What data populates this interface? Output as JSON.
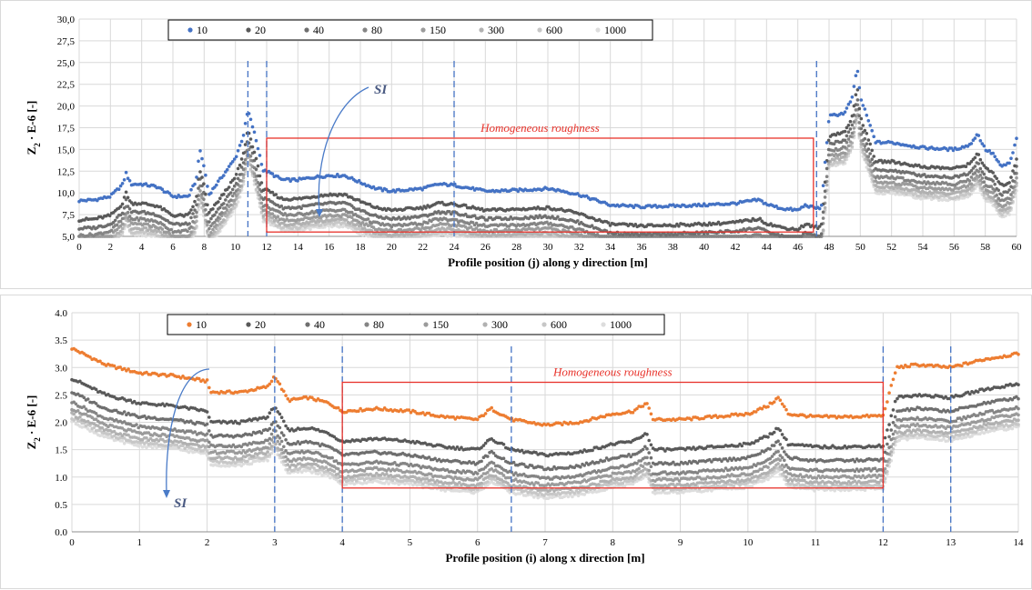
{
  "chart_data": [
    {
      "type": "scatter",
      "xlabel": "Profile position (j) along y direction [m]",
      "ylabel": "Z2 · E-6 [-]",
      "ylabel_main": "Z",
      "ylabel_sub": "2",
      "ylabel_rest": " · E-6 [-]",
      "xlim": [
        0,
        60
      ],
      "ylim": [
        5.0,
        30.0
      ],
      "xticks": [
        "0",
        "2",
        "4",
        "6",
        "8",
        "10",
        "12",
        "14",
        "16",
        "18",
        "20",
        "22",
        "24",
        "26",
        "28",
        "30",
        "32",
        "34",
        "36",
        "38",
        "40",
        "42",
        "44",
        "46",
        "48",
        "50",
        "52",
        "54",
        "56",
        "58",
        "60"
      ],
      "yticks": [
        "5,0",
        "7,5",
        "10,0",
        "12,5",
        "15,0",
        "17,5",
        "20,0",
        "22,5",
        "25,0",
        "27,5",
        "30,0"
      ],
      "grid": true,
      "legend_position": "top",
      "series": [
        {
          "name": "10",
          "color": "#4472c4"
        },
        {
          "name": "20",
          "color": "#595959"
        },
        {
          "name": "40",
          "color": "#6f6f6f"
        },
        {
          "name": "80",
          "color": "#858585"
        },
        {
          "name": "150",
          "color": "#9b9b9b"
        },
        {
          "name": "300",
          "color": "#b1b1b1"
        },
        {
          "name": "600",
          "color": "#c7c7c7"
        },
        {
          "name": "1000",
          "color": "#dddddd"
        }
      ],
      "base_profile": {
        "x": [
          0,
          1,
          2,
          2.8,
          3,
          3.3,
          4,
          5,
          6,
          7,
          7.5,
          7.7,
          8,
          8.3,
          9,
          10,
          10.5,
          10.8,
          11.2,
          11.8,
          12,
          13,
          14,
          15,
          16,
          17,
          18,
          19,
          20,
          22,
          23,
          24,
          26,
          28,
          30,
          31,
          32,
          33,
          34,
          36,
          38,
          40,
          42,
          43.5,
          44,
          45,
          46,
          46.5,
          47,
          47.5,
          48,
          49,
          49.5,
          49.8,
          50,
          51,
          52,
          54,
          56,
          57,
          57.5,
          58,
          58.5,
          59,
          59.6,
          60
        ],
        "y": [
          9.1,
          9.2,
          9.6,
          11.0,
          12.3,
          11.0,
          11.0,
          10.7,
          9.6,
          9.6,
          11.5,
          15.0,
          13.0,
          9.8,
          11.5,
          14.0,
          16.5,
          19.5,
          17.0,
          12.5,
          12.5,
          11.5,
          11.5,
          11.8,
          12.0,
          12.0,
          11.2,
          10.5,
          10.2,
          10.5,
          11.0,
          10.9,
          10.2,
          10.3,
          10.5,
          10.2,
          9.8,
          9.2,
          8.6,
          8.4,
          8.5,
          8.6,
          8.8,
          9.2,
          8.7,
          8.2,
          8.0,
          8.6,
          8.3,
          8.2,
          18.8,
          19.2,
          21.0,
          24.5,
          21.0,
          15.8,
          15.8,
          15.2,
          15.0,
          15.5,
          16.8,
          15.0,
          14.5,
          13.0,
          13.5,
          16.2
        ]
      },
      "series_offsets": [
        0,
        -2.2,
        -3.2,
        -4.0,
        -4.6,
        -5.1,
        -5.5,
        -5.8
      ],
      "dividers": [
        10.8,
        12,
        24,
        47.2
      ],
      "box": {
        "x0": 12,
        "x1": 47,
        "y0": 5.5,
        "y1": 16.3,
        "label": "Homogeneous roughness"
      },
      "annotation": "SI"
    },
    {
      "type": "scatter",
      "xlabel": "Profile position (i) along x direction [m]",
      "ylabel": "Z2 · E-6 [-]",
      "ylabel_main": "Z",
      "ylabel_sub": "2",
      "ylabel_rest": " · E-6 [-]",
      "xlim": [
        0,
        14
      ],
      "ylim": [
        0.0,
        4.0
      ],
      "xticks": [
        "0",
        "1",
        "2",
        "3",
        "4",
        "5",
        "6",
        "7",
        "8",
        "9",
        "10",
        "11",
        "12",
        "13",
        "14"
      ],
      "yticks": [
        "0.0",
        "0.5",
        "1.0",
        "1.5",
        "2.0",
        "2.5",
        "3.0",
        "3.5",
        "4.0"
      ],
      "grid": true,
      "legend_position": "top",
      "series": [
        {
          "name": "10",
          "color": "#ed7d31"
        },
        {
          "name": "20",
          "color": "#595959"
        },
        {
          "name": "40",
          "color": "#6f6f6f"
        },
        {
          "name": "80",
          "color": "#858585"
        },
        {
          "name": "150",
          "color": "#9b9b9b"
        },
        {
          "name": "300",
          "color": "#b1b1b1"
        },
        {
          "name": "600",
          "color": "#c7c7c7"
        },
        {
          "name": "1000",
          "color": "#dddddd"
        }
      ],
      "base_profile": {
        "x": [
          0,
          0.5,
          1,
          1.5,
          2,
          2.05,
          2.5,
          2.9,
          3,
          3.2,
          3.5,
          3.8,
          4,
          4.5,
          5,
          5.5,
          6,
          6.2,
          6.5,
          7,
          7.5,
          8,
          8.3,
          8.5,
          8.6,
          9,
          9.5,
          10,
          10.3,
          10.45,
          10.6,
          11,
          11.5,
          12,
          12.05,
          12.2,
          12.5,
          13,
          13.5,
          14
        ],
        "y": [
          3.35,
          3.05,
          2.9,
          2.85,
          2.75,
          2.55,
          2.55,
          2.65,
          2.85,
          2.4,
          2.45,
          2.35,
          2.2,
          2.25,
          2.2,
          2.1,
          2.05,
          2.25,
          2.05,
          1.95,
          2.0,
          2.15,
          2.2,
          2.35,
          2.05,
          2.05,
          2.1,
          2.15,
          2.3,
          2.45,
          2.15,
          2.1,
          2.1,
          2.12,
          2.35,
          3.0,
          3.05,
          3.0,
          3.15,
          3.25
        ]
      },
      "series_offsets": [
        0,
        -0.55,
        -0.8,
        -0.98,
        -1.1,
        -1.2,
        -1.27,
        -1.33
      ],
      "dividers": [
        3,
        4,
        6.5,
        12,
        13
      ],
      "box": {
        "x0": 4,
        "x1": 12,
        "y0": 0.8,
        "y1": 2.73,
        "label": "Homogeneous roughness"
      },
      "annotation": "SI"
    }
  ]
}
